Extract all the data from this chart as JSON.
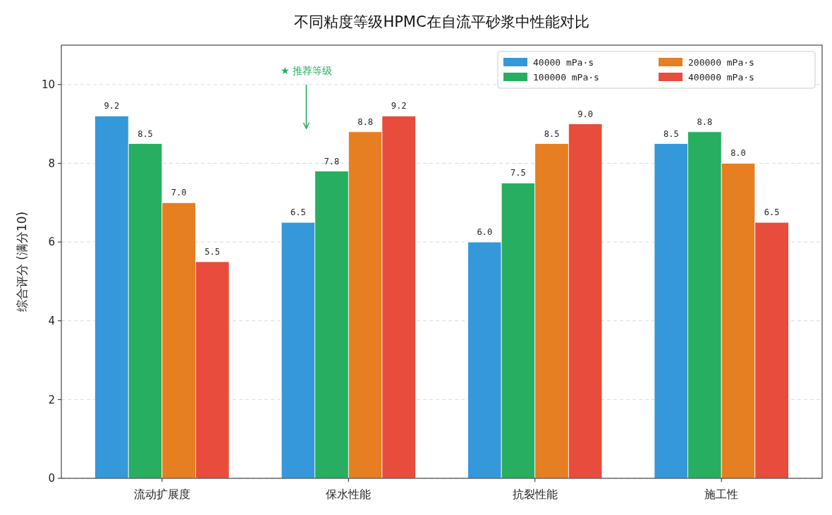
{
  "chart_data": {
    "type": "bar",
    "title": "不同粘度等级HPMC在自流平砂浆中性能对比",
    "ylabel": "综合评分 (满分10)",
    "categories": [
      "流动扩展度",
      "保水性能",
      "抗裂性能",
      "施工性"
    ],
    "series": [
      {
        "name": "40000 mPa·s",
        "color": "#3498db",
        "values": [
          9.2,
          6.5,
          6.0,
          8.5
        ],
        "value_labels": [
          "9.2",
          "6.5",
          "6.0",
          "8.5"
        ]
      },
      {
        "name": "100000 mPa·s",
        "color": "#27ae60",
        "values": [
          8.5,
          7.8,
          7.5,
          8.8
        ],
        "value_labels": [
          "8.5",
          "7.8",
          "7.5",
          "8.8"
        ]
      },
      {
        "name": "200000 mPa·s",
        "color": "#e67e22",
        "values": [
          7.0,
          8.8,
          8.5,
          8.0
        ],
        "value_labels": [
          "7.0",
          "8.8",
          "8.5",
          "8.0"
        ]
      },
      {
        "name": "400000 mPa·s",
        "color": "#e74c3c",
        "values": [
          5.5,
          9.2,
          9.0,
          6.5
        ],
        "value_labels": [
          "5.5",
          "9.2",
          "9.0",
          "6.5"
        ]
      }
    ],
    "ylim": [
      0,
      11
    ],
    "yticks": [
      0,
      2,
      4,
      6,
      8,
      10
    ],
    "grid": "y",
    "legend": "top right",
    "annotations": [
      "★ 推荐等级"
    ]
  }
}
